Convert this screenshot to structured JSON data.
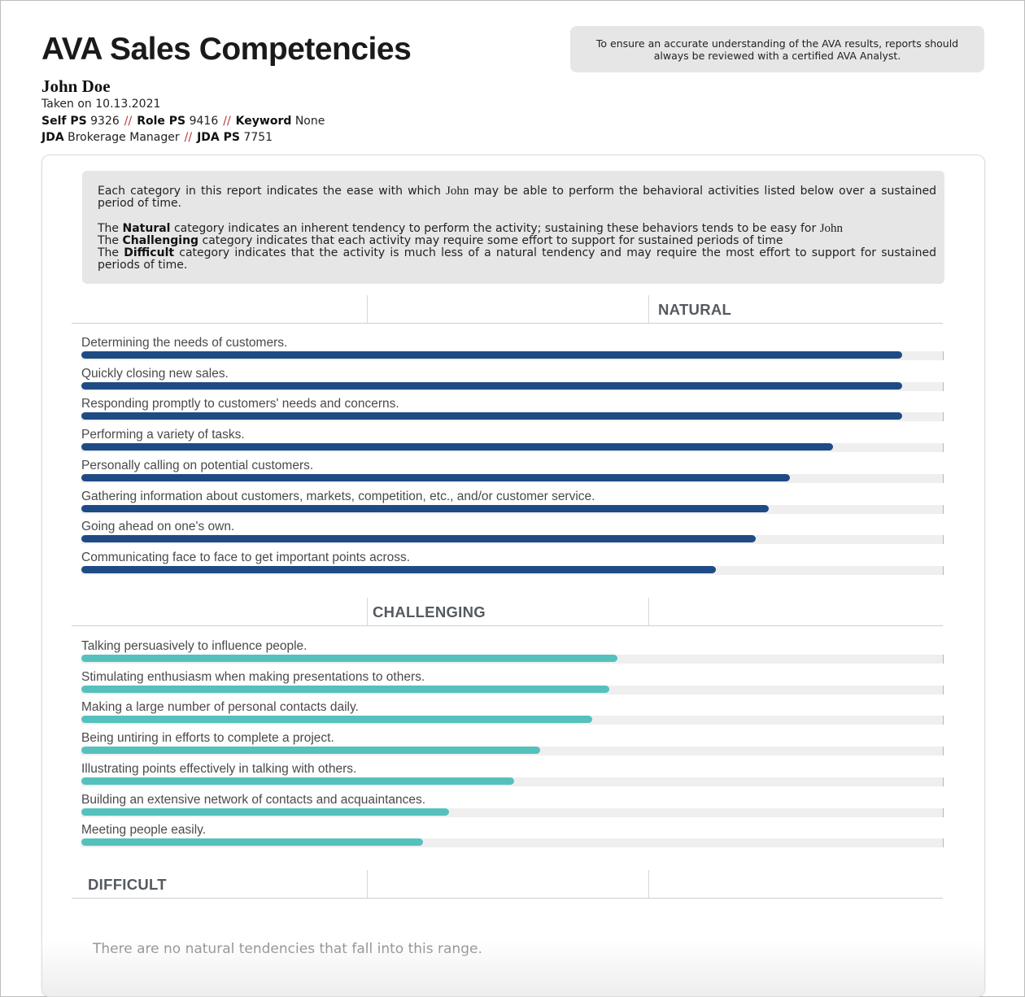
{
  "header": {
    "title": "AVA Sales Competencies",
    "name": "John Doe",
    "taken_prefix": "Taken on",
    "taken_date": "10.13.2021",
    "self_ps_label": "Self PS",
    "self_ps_value": "9326",
    "role_ps_label": "Role PS",
    "role_ps_value": "9416",
    "keyword_label": "Keyword",
    "keyword_value": "None",
    "jda_label": "JDA",
    "jda_value": "Brokerage Manager",
    "jda_ps_label": "JDA PS",
    "jda_ps_value": "7751",
    "separator": "//"
  },
  "notice": {
    "line1": "To ensure an accurate understanding of the AVA results, reports should",
    "line2": "always be reviewed with a certified AVA Analyst."
  },
  "explanation": {
    "intro_a": "Each category in this report indicates the ease with which",
    "intro_name": "John",
    "intro_b": "may be able to perform the behavioral activities listed below over a sustained period of time.",
    "natural_the": "The",
    "natural_word": "Natural",
    "natural_rest": "category indicates an inherent tendency to perform the activity; sustaining these behaviors tends to be easy for",
    "natural_name": "John",
    "challenging_the": "The",
    "challenging_word": "Challenging",
    "challenging_rest": "category indicates that each activity may require some effort to support for sustained periods of time",
    "difficult_the": "The",
    "difficult_word": "Difficult",
    "difficult_rest": "category indicates that the activity is much less of a natural tendency and may require the most effort to support for sustained periods of time."
  },
  "colors": {
    "natural": "#1f4b85",
    "challenging": "#55c1bd"
  },
  "sections": {
    "natural": {
      "label": "NATURAL",
      "items": [
        {
          "label": "Determining the needs of customers.",
          "score": 0.952
        },
        {
          "label": "Quickly closing new sales.",
          "score": 0.952
        },
        {
          "label": "Responding promptly to customers' needs and concerns.",
          "score": 0.952
        },
        {
          "label": "Performing a variety of tasks.",
          "score": 0.872
        },
        {
          "label": "Personally calling on potential customers.",
          "score": 0.822
        },
        {
          "label": "Gathering information about customers, markets, competition, etc., and/or customer service.",
          "score": 0.797
        },
        {
          "label": "Going ahead on one's own.",
          "score": 0.782
        },
        {
          "label": "Communicating face to face to get important points across.",
          "score": 0.736
        }
      ]
    },
    "challenging": {
      "label": "CHALLENGING",
      "items": [
        {
          "label": "Talking persuasively to influence people.",
          "score": 0.622
        },
        {
          "label": "Stimulating enthusiasm when making presentations to others.",
          "score": 0.612
        },
        {
          "label": "Making a large number of personal contacts daily.",
          "score": 0.592
        },
        {
          "label": "Being untiring in efforts to complete a project.",
          "score": 0.532
        },
        {
          "label": "Illustrating points effectively in talking with others.",
          "score": 0.502
        },
        {
          "label": "Building an extensive network of contacts and acquaintances.",
          "score": 0.426
        },
        {
          "label": "Meeting people easily.",
          "score": 0.396
        }
      ]
    },
    "difficult": {
      "label": "DIFFICULT",
      "empty_message": "There are no natural tendencies that fall into this range."
    }
  }
}
